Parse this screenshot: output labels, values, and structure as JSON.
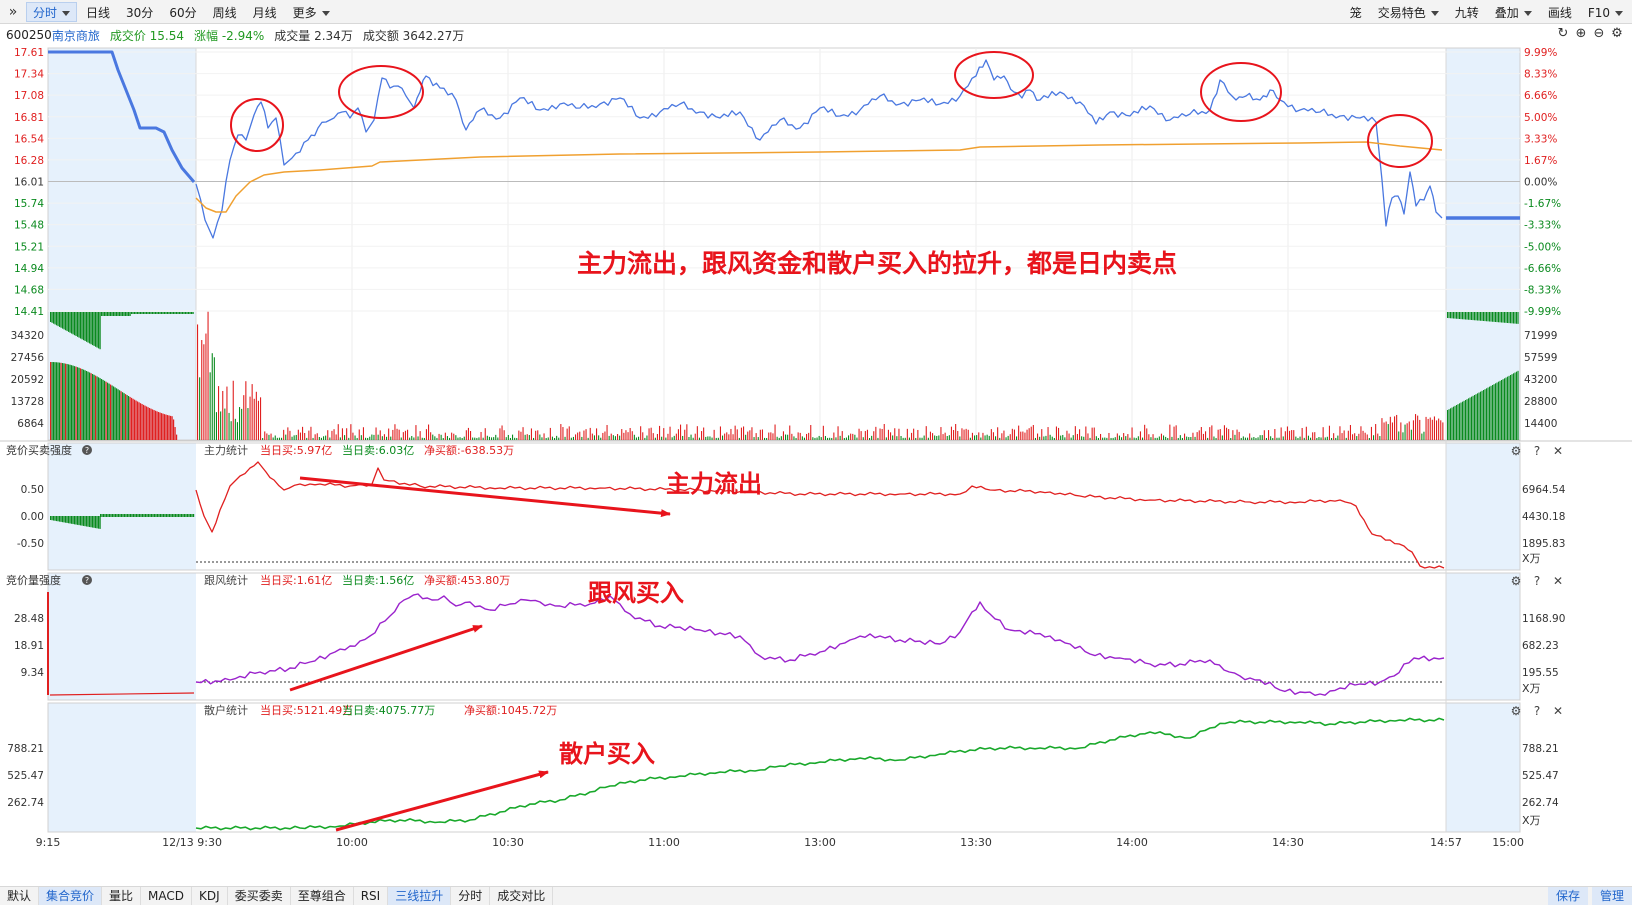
{
  "toolbar": {
    "left": [
      {
        "label": "分时",
        "active": true,
        "caret": true
      },
      {
        "label": "日线"
      },
      {
        "label": "30分"
      },
      {
        "label": "60分"
      },
      {
        "label": "周线"
      },
      {
        "label": "月线"
      },
      {
        "label": "更多",
        "caret": true
      }
    ],
    "right": [
      {
        "label": "笼"
      },
      {
        "label": "交易特色",
        "caret": true
      },
      {
        "label": "九转"
      },
      {
        "label": "叠加",
        "caret": true
      },
      {
        "label": "画线"
      },
      {
        "label": "F10",
        "caret": true
      }
    ]
  },
  "stock": {
    "code": "600250",
    "name": "南京商旅",
    "price_label": "成交价 15.54",
    "change_label": "涨幅 -2.94%",
    "volume_label": "成交量 2.34万",
    "amount_label": "成交额 3642.27万"
  },
  "colors": {
    "up": "#e02020",
    "down": "#0a8a1e",
    "price_line": "#4a78e0",
    "avg_line": "#f0a030",
    "purple": "#9a22cc",
    "green_line": "#18a82a",
    "auction_bg": "#e6f1fc",
    "annotation": "#e8141c"
  },
  "price_panel": {
    "left_ticks": [
      "17.61",
      "17.34",
      "17.08",
      "16.81",
      "16.54",
      "16.28",
      "16.01",
      "15.74",
      "15.48",
      "15.21",
      "14.94",
      "14.68",
      "14.41"
    ],
    "right_ticks": [
      "9.99%",
      "8.33%",
      "6.66%",
      "5.00%",
      "3.33%",
      "1.67%",
      "0.00%",
      "-1.67%",
      "-3.33%",
      "-5.00%",
      "-6.66%",
      "-8.33%",
      "-9.99%"
    ],
    "annotation": "主力流出，跟风资金和散户买入的拉升，都是日内卖点"
  },
  "volume_panel": {
    "left_ticks": [
      "34320",
      "27456",
      "20592",
      "13728",
      "6864"
    ],
    "right_ticks": [
      "71999",
      "57599",
      "43200",
      "28800",
      "14400"
    ]
  },
  "panel1": {
    "left_title": "竞价买卖强度",
    "title": "主力统计",
    "buy_label": "当日买:5.97亿",
    "sell_label": "当日卖:6.03亿",
    "net_label": "净买额:-638.53万",
    "left_ticks": [
      "0.50",
      "0.00",
      "-0.50"
    ],
    "right_ticks": [
      "6964.54",
      "4430.18",
      "1895.83"
    ],
    "unit": "X万",
    "annotation": "主力流出"
  },
  "panel2": {
    "left_title": "竞价量强度",
    "title": "跟风统计",
    "buy_label": "当日买:1.61亿",
    "sell_label": "当日卖:1.56亿",
    "net_label": "净买额:453.80万",
    "left_ticks": [
      "28.48",
      "18.91",
      "9.34"
    ],
    "right_ticks": [
      "1168.90",
      "682.23",
      "195.55"
    ],
    "unit": "X万",
    "annotation": "跟风买入"
  },
  "panel3": {
    "title": "散户统计",
    "buy_label": "当日买:5121.49万",
    "sell_label": "当日卖:4075.77万",
    "net_label": "净买额:1045.72万",
    "left_ticks": [
      "788.21",
      "525.47",
      "262.74"
    ],
    "right_ticks": [
      "788.21",
      "525.47",
      "262.74"
    ],
    "unit": "X万",
    "annotation": "散户买入"
  },
  "time_axis": [
    "9:15",
    "12/13 9:30",
    "10:00",
    "10:30",
    "11:00",
    "13:00",
    "13:30",
    "14:00",
    "14:30",
    "14:57",
    "15:00"
  ],
  "bottom_tabs": [
    {
      "label": "默认"
    },
    {
      "label": "集合竞价",
      "active": true
    },
    {
      "label": "量比"
    },
    {
      "label": "MACD"
    },
    {
      "label": "KDJ"
    },
    {
      "label": "委买委卖"
    },
    {
      "label": "至尊组合"
    },
    {
      "label": "RSI"
    },
    {
      "label": "三线拉升",
      "active": true
    },
    {
      "label": "分时"
    },
    {
      "label": "成交对比"
    }
  ],
  "bottom_buttons": [
    "保存",
    "管理"
  ]
}
